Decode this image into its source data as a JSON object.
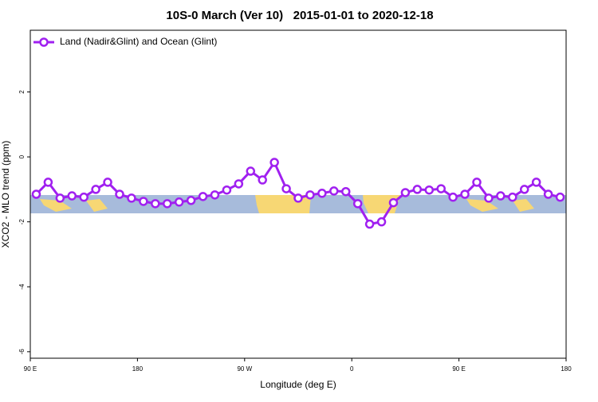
{
  "chart_data": {
    "type": "line",
    "title": "10S-0 March (Ver 10)   2015-01-01 to 2020-12-18",
    "xlabel": "Longitude (deg E)",
    "ylabel": "XCO2 - MLO trend (ppm)",
    "x": [
      95,
      105,
      115,
      125,
      135,
      145,
      155,
      165,
      175,
      185,
      195,
      205,
      215,
      225,
      235,
      245,
      255,
      265,
      275,
      285,
      295,
      305,
      315,
      325,
      335,
      345,
      355,
      365,
      375,
      385,
      395,
      405,
      415,
      425,
      435,
      445,
      455,
      465,
      475,
      485,
      495,
      505,
      515,
      525,
      535
    ],
    "series": [
      {
        "name": "Land (Nadir&Glint) and Ocean (Glint)",
        "color": "#a020f0",
        "values": [
          -1.15,
          -0.78,
          -1.27,
          -1.2,
          -1.24,
          -1.0,
          -0.78,
          -1.15,
          -1.27,
          -1.37,
          -1.44,
          -1.44,
          -1.39,
          -1.34,
          -1.22,
          -1.17,
          -1.02,
          -0.83,
          -0.44,
          -0.71,
          -0.17,
          -0.98,
          -1.27,
          -1.17,
          -1.12,
          -1.05,
          -1.07,
          -1.44,
          -2.07,
          -2.0,
          -1.41,
          -1.1,
          -1.0,
          -1.02,
          -0.98,
          -1.24,
          -1.15,
          -0.78,
          -1.27,
          -1.2,
          -1.24,
          -1.0,
          -0.78,
          -1.15,
          -1.24
        ]
      }
    ],
    "xlim": [
      90,
      540
    ],
    "xticks": [
      {
        "value": 90,
        "label": "90 E"
      },
      180,
      {
        "value": 270,
        "label": "90 W"
      },
      {
        "value": 360,
        "label": "0"
      },
      {
        "value": 450,
        "label": "90 E"
      },
      {
        "value": 540,
        "label": "180"
      }
    ],
    "ylim": [
      -6.2,
      3.9
    ],
    "yticks": [
      -6,
      -4,
      -2,
      0,
      2
    ],
    "legend": "top-left"
  }
}
